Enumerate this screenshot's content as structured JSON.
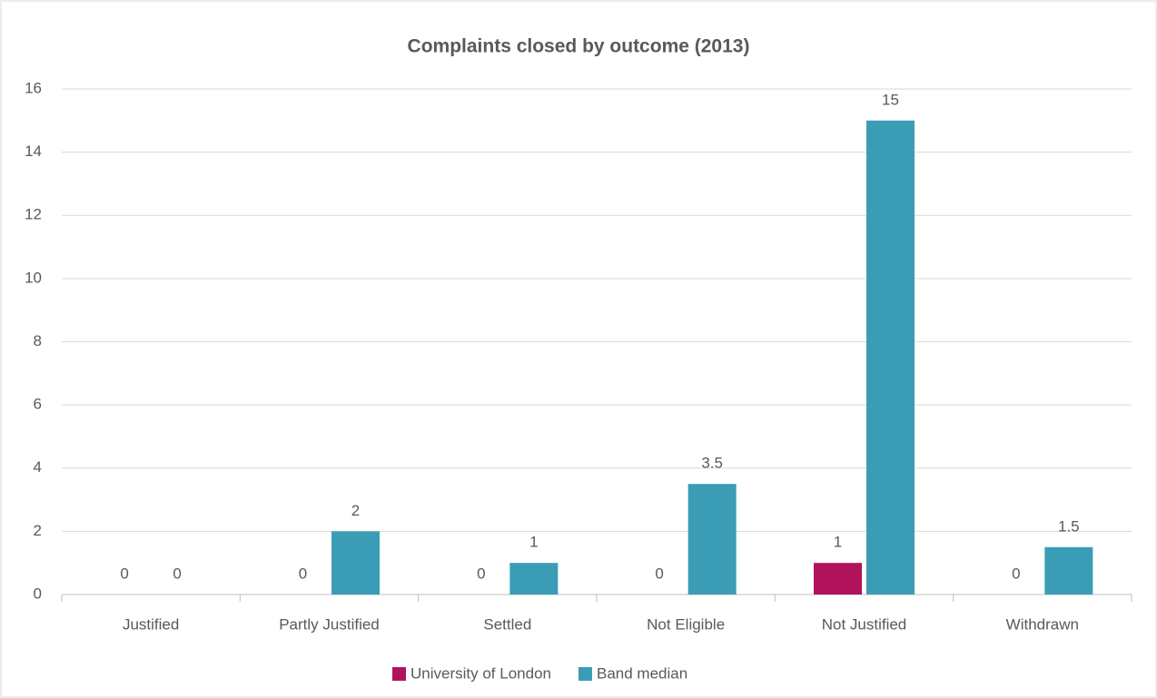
{
  "chart_data": {
    "type": "bar",
    "title": "Complaints closed by outcome (2013)",
    "categories": [
      "Justified",
      "Partly Justified",
      "Settled",
      "Not Eligible",
      "Not Justified",
      "Withdrawn"
    ],
    "series": [
      {
        "name": "University of London",
        "color": "#b0135a",
        "values": [
          0,
          0,
          0,
          0,
          1,
          0
        ]
      },
      {
        "name": "Band median",
        "color": "#3a9db5",
        "values": [
          0,
          2,
          1,
          3.5,
          15,
          1.5
        ]
      }
    ],
    "ylim": [
      0,
      16
    ],
    "yticks": [
      0,
      2,
      4,
      6,
      8,
      10,
      12,
      14,
      16
    ],
    "grid": true,
    "legend": "bottom"
  }
}
